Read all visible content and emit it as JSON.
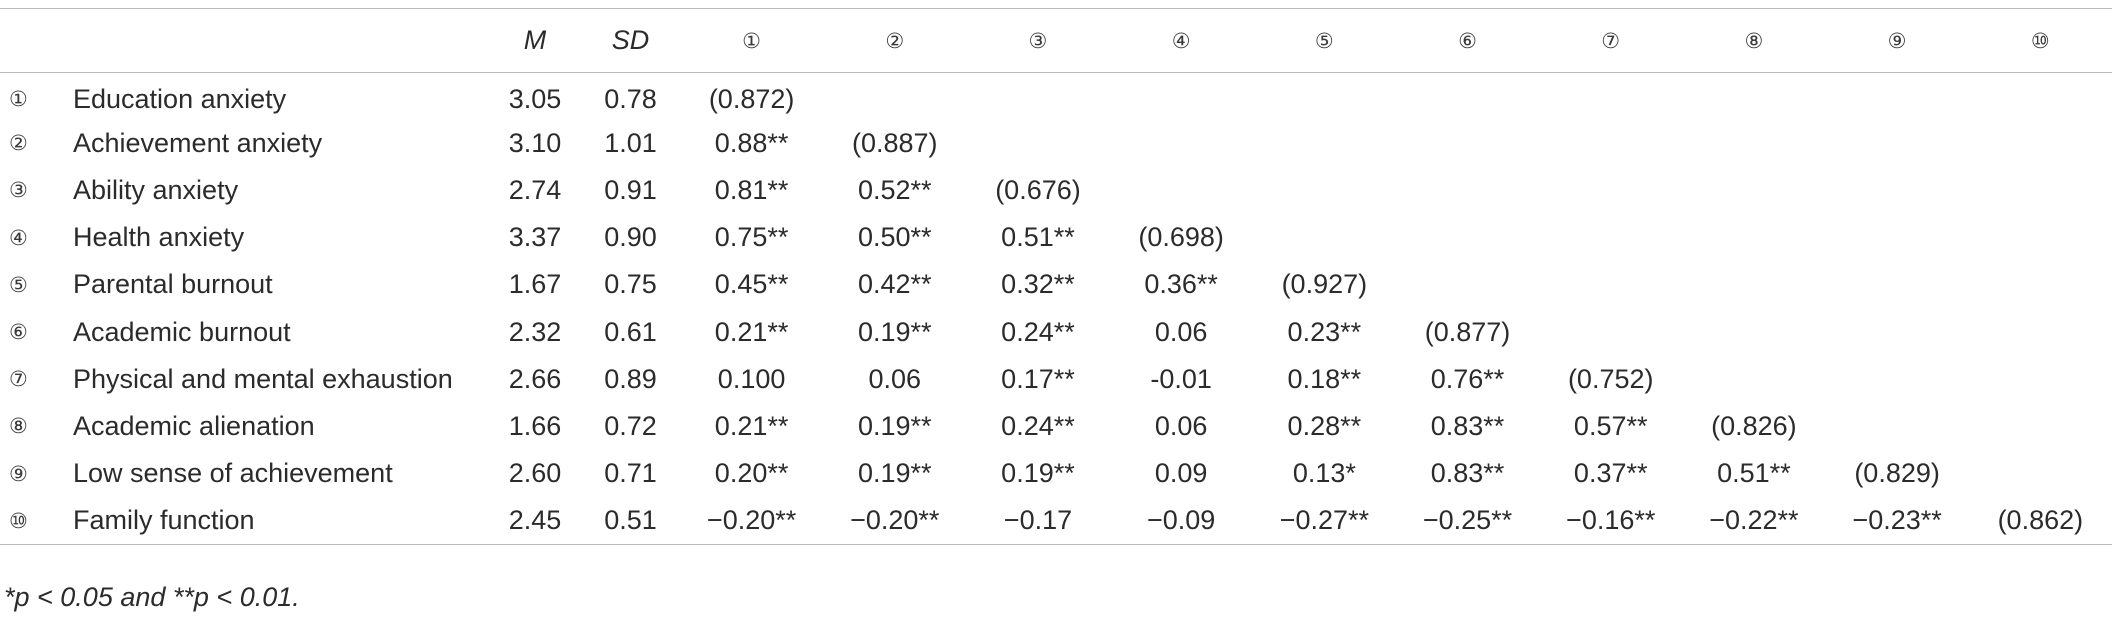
{
  "table": {
    "stat_headers": [
      "M",
      "SD"
    ],
    "col_headers": [
      "①",
      "②",
      "③",
      "④",
      "⑤",
      "⑥",
      "⑦",
      "⑧",
      "⑨",
      "⑩"
    ],
    "rows": [
      {
        "idx": "①",
        "label": "Education anxiety",
        "m": "3.05",
        "sd": "0.78",
        "cells": [
          "(0.872)",
          "",
          "",
          "",
          "",
          "",
          "",
          "",
          "",
          ""
        ]
      },
      {
        "idx": "②",
        "label": "Achievement anxiety",
        "m": "3.10",
        "sd": "1.01",
        "cells": [
          "0.88**",
          "(0.887)",
          "",
          "",
          "",
          "",
          "",
          "",
          "",
          ""
        ]
      },
      {
        "idx": "③",
        "label": "Ability anxiety",
        "m": "2.74",
        "sd": "0.91",
        "cells": [
          "0.81**",
          "0.52**",
          "(0.676)",
          "",
          "",
          "",
          "",
          "",
          "",
          ""
        ]
      },
      {
        "idx": "④",
        "label": "Health anxiety",
        "m": "3.37",
        "sd": "0.90",
        "cells": [
          "0.75**",
          "0.50**",
          "0.51**",
          "(0.698)",
          "",
          "",
          "",
          "",
          "",
          ""
        ]
      },
      {
        "idx": "⑤",
        "label": "Parental burnout",
        "m": "1.67",
        "sd": "0.75",
        "cells": [
          "0.45**",
          "0.42**",
          "0.32**",
          "0.36**",
          "(0.927)",
          "",
          "",
          "",
          "",
          ""
        ]
      },
      {
        "idx": "⑥",
        "label": "Academic burnout",
        "m": "2.32",
        "sd": "0.61",
        "cells": [
          "0.21**",
          "0.19**",
          "0.24**",
          "0.06",
          "0.23**",
          "(0.877)",
          "",
          "",
          "",
          ""
        ]
      },
      {
        "idx": "⑦",
        "label": "Physical and mental exhaustion",
        "m": "2.66",
        "sd": "0.89",
        "cells": [
          "0.100",
          "0.06",
          "0.17**",
          "-0.01",
          "0.18**",
          "0.76**",
          "(0.752)",
          "",
          "",
          ""
        ]
      },
      {
        "idx": "⑧",
        "label": "Academic alienation",
        "m": "1.66",
        "sd": "0.72",
        "cells": [
          "0.21**",
          "0.19**",
          "0.24**",
          "0.06",
          "0.28**",
          "0.83**",
          "0.57**",
          "(0.826)",
          "",
          ""
        ]
      },
      {
        "idx": "⑨",
        "label": "Low sense of achievement",
        "m": "2.60",
        "sd": "0.71",
        "cells": [
          "0.20**",
          "0.19**",
          "0.19**",
          "0.09",
          "0.13*",
          "0.83**",
          "0.37**",
          "0.51**",
          "(0.829)",
          ""
        ]
      },
      {
        "idx": "⑩",
        "label": "Family function",
        "m": "2.45",
        "sd": "0.51",
        "cells": [
          "−0.20**",
          "−0.20**",
          "−0.17",
          "−0.09",
          "−0.27**",
          "−0.25**",
          "−0.16**",
          "−0.22**",
          "−0.23**",
          "(0.862)"
        ]
      }
    ]
  },
  "footnote": "*p < 0.05 and **p < 0.01."
}
